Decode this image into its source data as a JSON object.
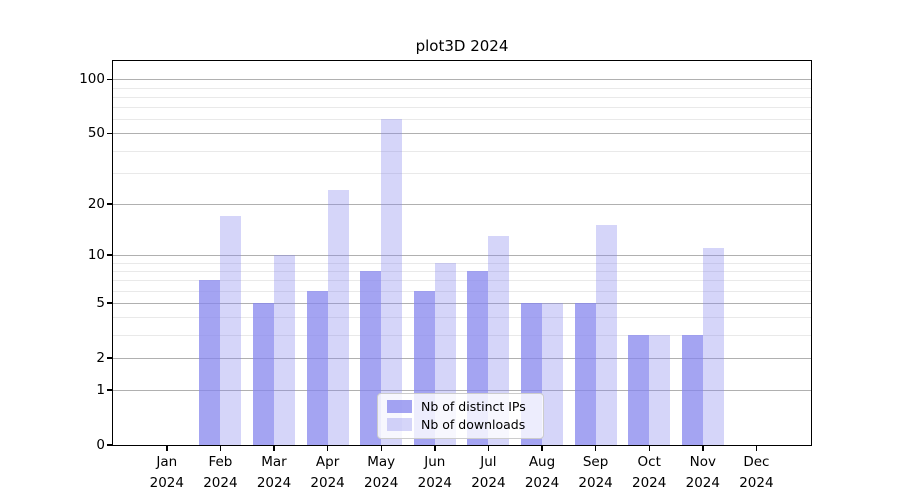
{
  "figure": {
    "background": "#ffffff"
  },
  "chart_data": {
    "type": "bar",
    "title": "plot3D 2024",
    "categories": [
      "Jan",
      "Feb",
      "Mar",
      "Apr",
      "May",
      "Jun",
      "Jul",
      "Aug",
      "Sep",
      "Oct",
      "Nov",
      "Dec"
    ],
    "x_tick_second_line": "2024",
    "series": [
      {
        "name": "Nb of distinct IPs",
        "color": "rgba(134,134,238,0.75)",
        "values": [
          0,
          7,
          5,
          6,
          8,
          6,
          8,
          5,
          5,
          3,
          3,
          0
        ]
      },
      {
        "name": "Nb of downloads",
        "color": "rgba(134,134,238,0.35)",
        "values": [
          0,
          17,
          10,
          24,
          60,
          9,
          13,
          5,
          15,
          3,
          11,
          0
        ]
      }
    ],
    "y_axis": {
      "scale": "log1p",
      "major_ticks": [
        0,
        1,
        2,
        5,
        10,
        20,
        50,
        100
      ],
      "minor_ticks": [
        3,
        4,
        6,
        7,
        8,
        9,
        30,
        40,
        60,
        70,
        80,
        90
      ],
      "ylim": [
        0,
        127
      ]
    },
    "xlabel": "",
    "ylabel": "",
    "legend": {
      "position": "lower center",
      "entries": [
        "Nb of distinct IPs",
        "Nb of downloads"
      ]
    },
    "colors": {
      "major_grid": "#b0b0b0",
      "minor_grid": "#e9e9e9",
      "axis": "#000000",
      "text": "#000000"
    },
    "grid": "on"
  }
}
